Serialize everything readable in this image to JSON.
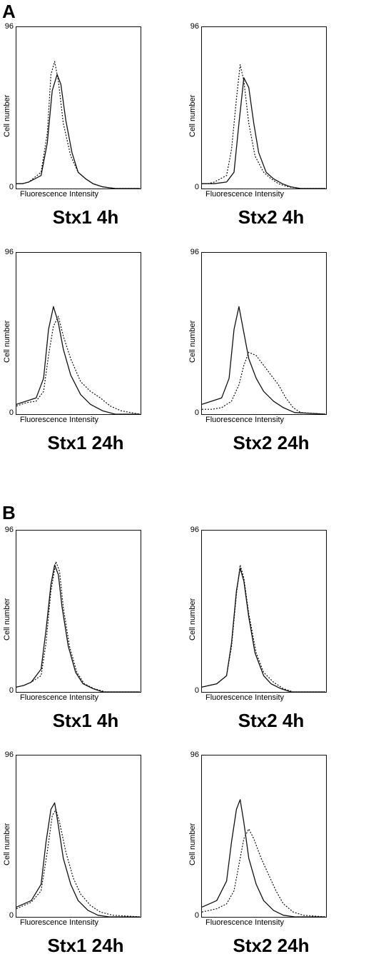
{
  "panels": [
    {
      "letter": "A"
    },
    {
      "letter": "B"
    }
  ],
  "chart_data": [
    {
      "type": "line",
      "panel": "A",
      "title": "Stx1 4h",
      "xlabel": "Fluorescence Intensity",
      "ylabel": "Cell number",
      "yticks": [
        "96",
        "0"
      ],
      "ylim": [
        0,
        96
      ],
      "series": [
        {
          "style": "solid",
          "x": [
            0,
            5,
            10,
            20,
            25,
            29,
            33,
            36,
            40,
            45,
            50,
            56,
            62,
            70,
            80,
            100
          ],
          "y": [
            3,
            3,
            4,
            8,
            28,
            60,
            70,
            64,
            42,
            22,
            10,
            6,
            3,
            1,
            0,
            0
          ]
        },
        {
          "style": "dotted",
          "x": [
            0,
            5,
            10,
            20,
            25,
            28,
            31,
            34,
            38,
            44,
            50,
            56,
            62,
            70,
            80,
            100
          ],
          "y": [
            3,
            3,
            4,
            10,
            34,
            70,
            78,
            66,
            40,
            20,
            10,
            6,
            3,
            1,
            0,
            0
          ]
        }
      ]
    },
    {
      "type": "line",
      "panel": "A",
      "title": "Stx2 4h",
      "xlabel": "Fluorescence Intensity",
      "ylabel": "Cell number",
      "yticks": [
        "96",
        "0"
      ],
      "ylim": [
        0,
        96
      ],
      "series": [
        {
          "style": "solid",
          "x": [
            0,
            5,
            10,
            20,
            26,
            30,
            34,
            38,
            42,
            46,
            52,
            58,
            65,
            72,
            80,
            100
          ],
          "y": [
            3,
            3,
            3,
            4,
            10,
            40,
            68,
            62,
            40,
            22,
            10,
            6,
            3,
            1,
            0,
            0
          ]
        },
        {
          "style": "dotted",
          "x": [
            0,
            5,
            10,
            20,
            24,
            28,
            31,
            34,
            38,
            43,
            50,
            56,
            62,
            70,
            80,
            100
          ],
          "y": [
            3,
            3,
            4,
            8,
            24,
            55,
            76,
            66,
            40,
            20,
            10,
            6,
            3,
            1,
            0,
            0
          ]
        }
      ]
    },
    {
      "type": "line",
      "panel": "A",
      "title": "Stx1 24h",
      "xlabel": "Fluorescence Intensity",
      "ylabel": "Cell number",
      "yticks": [
        "96",
        "0"
      ],
      "ylim": [
        0,
        96
      ],
      "series": [
        {
          "style": "solid",
          "x": [
            0,
            8,
            16,
            22,
            26,
            30,
            34,
            38,
            44,
            52,
            60,
            70,
            80,
            100
          ],
          "y": [
            6,
            8,
            10,
            22,
            52,
            66,
            56,
            40,
            24,
            12,
            6,
            2,
            0,
            0
          ]
        },
        {
          "style": "dotted",
          "x": [
            0,
            8,
            16,
            22,
            26,
            30,
            34,
            38,
            44,
            52,
            60,
            68,
            76,
            85,
            100
          ],
          "y": [
            5,
            7,
            8,
            14,
            36,
            54,
            60,
            48,
            34,
            20,
            14,
            10,
            5,
            2,
            0
          ]
        }
      ]
    },
    {
      "type": "line",
      "panel": "A",
      "title": "Stx2 24h",
      "xlabel": "Fluorescence Intensity",
      "ylabel": "Cell number",
      "yticks": [
        "96",
        "0"
      ],
      "ylim": [
        0,
        96
      ],
      "series": [
        {
          "style": "solid",
          "x": [
            0,
            8,
            16,
            22,
            26,
            30,
            34,
            38,
            44,
            50,
            58,
            66,
            75,
            100
          ],
          "y": [
            6,
            8,
            10,
            22,
            52,
            66,
            50,
            34,
            22,
            14,
            8,
            4,
            1,
            0
          ]
        },
        {
          "style": "dotted",
          "x": [
            0,
            8,
            16,
            24,
            30,
            34,
            38,
            44,
            50,
            56,
            62,
            68,
            74,
            80,
            100
          ],
          "y": [
            3,
            3,
            4,
            8,
            18,
            30,
            38,
            36,
            30,
            24,
            18,
            10,
            4,
            1,
            0
          ]
        }
      ]
    },
    {
      "type": "line",
      "panel": "B",
      "title": "Stx1 4h",
      "xlabel": "Fluorescence Intensity",
      "ylabel": "Cell number",
      "yticks": [
        "96",
        "0"
      ],
      "ylim": [
        0,
        96
      ],
      "series": [
        {
          "style": "solid",
          "x": [
            0,
            6,
            12,
            20,
            24,
            28,
            31,
            34,
            37,
            42,
            48,
            54,
            62,
            70,
            100
          ],
          "y": [
            3,
            4,
            6,
            14,
            38,
            66,
            78,
            72,
            52,
            28,
            12,
            5,
            2,
            0,
            0
          ]
        },
        {
          "style": "dotted",
          "x": [
            0,
            6,
            12,
            20,
            24,
            28,
            32,
            35,
            38,
            43,
            49,
            55,
            63,
            72,
            100
          ],
          "y": [
            3,
            4,
            6,
            10,
            30,
            62,
            80,
            74,
            52,
            28,
            12,
            5,
            2,
            0,
            0
          ]
        }
      ]
    },
    {
      "type": "line",
      "panel": "B",
      "title": "Stx2 4h",
      "xlabel": "Fluorescence Intensity",
      "ylabel": "Cell number",
      "yticks": [
        "96",
        "0"
      ],
      "ylim": [
        0,
        96
      ],
      "series": [
        {
          "style": "solid",
          "x": [
            0,
            6,
            12,
            20,
            24,
            28,
            31,
            34,
            38,
            43,
            50,
            56,
            64,
            72,
            100
          ],
          "y": [
            3,
            4,
            5,
            10,
            30,
            62,
            76,
            68,
            46,
            24,
            10,
            5,
            2,
            0,
            0
          ]
        },
        {
          "style": "dotted",
          "x": [
            0,
            6,
            12,
            20,
            24,
            28,
            31,
            34,
            38,
            44,
            50,
            58,
            66,
            74,
            100
          ],
          "y": [
            3,
            4,
            5,
            10,
            28,
            60,
            78,
            70,
            48,
            24,
            12,
            6,
            2,
            0,
            0
          ]
        }
      ]
    },
    {
      "type": "line",
      "panel": "B",
      "title": "Stx1 24h",
      "xlabel": "Fluorescence Intensity",
      "ylabel": "Cell number",
      "yticks": [
        "96",
        "0"
      ],
      "ylim": [
        0,
        96
      ],
      "series": [
        {
          "style": "solid",
          "x": [
            0,
            6,
            12,
            20,
            24,
            28,
            31,
            34,
            38,
            44,
            50,
            58,
            66,
            75,
            100
          ],
          "y": [
            6,
            8,
            10,
            20,
            46,
            66,
            70,
            56,
            36,
            20,
            10,
            4,
            1,
            0,
            0
          ]
        },
        {
          "style": "dotted",
          "x": [
            0,
            6,
            12,
            20,
            25,
            29,
            32,
            35,
            40,
            46,
            52,
            60,
            68,
            78,
            100
          ],
          "y": [
            5,
            7,
            9,
            16,
            40,
            62,
            66,
            58,
            40,
            24,
            14,
            7,
            3,
            1,
            0
          ]
        }
      ]
    },
    {
      "type": "line",
      "panel": "B",
      "title": "Stx2 24h",
      "xlabel": "Fluorescence Intensity",
      "ylabel": "Cell number",
      "yticks": [
        "96",
        "0"
      ],
      "ylim": [
        0,
        96
      ],
      "series": [
        {
          "style": "solid",
          "x": [
            0,
            6,
            12,
            20,
            24,
            28,
            31,
            34,
            38,
            44,
            50,
            58,
            66,
            75,
            100
          ],
          "y": [
            6,
            8,
            10,
            22,
            46,
            66,
            72,
            58,
            36,
            20,
            10,
            4,
            1,
            0,
            0
          ]
        },
        {
          "style": "dotted",
          "x": [
            0,
            6,
            12,
            20,
            26,
            30,
            34,
            38,
            42,
            48,
            54,
            60,
            66,
            74,
            82,
            100
          ],
          "y": [
            3,
            4,
            5,
            8,
            16,
            32,
            48,
            54,
            48,
            36,
            26,
            16,
            8,
            3,
            1,
            0
          ]
        }
      ]
    }
  ]
}
